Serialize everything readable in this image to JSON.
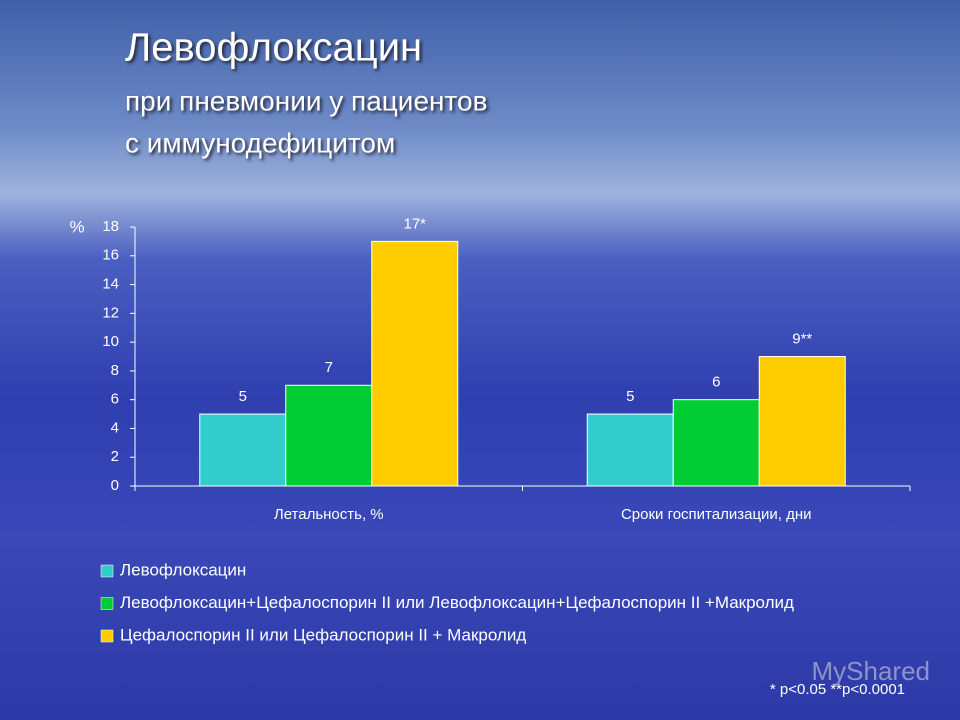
{
  "chart_data": {
    "type": "bar",
    "title": "Левофлоксацин",
    "subtitle": [
      "при пневмонии у пациентов",
      "с иммунодефицитом"
    ],
    "y_label": "%",
    "categories": [
      "Летальность, %",
      "Сроки госпитализации, дни"
    ],
    "series": [
      {
        "name": "Левофлоксацин",
        "color": "#33cccc",
        "values": [
          5,
          5
        ]
      },
      {
        "name": "Левофлоксацин+Цефалоспорин II или Левофлоксацин+Цефалоспорин II +Макролид",
        "color": "#00cc33",
        "values": [
          7,
          6
        ]
      },
      {
        "name": "Цефалоспорин II или Цефалоспорин II + Макролид",
        "color": "#ffcc00",
        "values": [
          17,
          9
        ],
        "value_labels": [
          "17*",
          "9**"
        ]
      }
    ],
    "ylim": [
      0,
      18
    ],
    "yticks": [
      0,
      2,
      4,
      6,
      8,
      10,
      12,
      14,
      16,
      18
    ],
    "grid": false,
    "footnote": "* p<0.05  **p<0.0001",
    "watermark": "MyShared"
  }
}
